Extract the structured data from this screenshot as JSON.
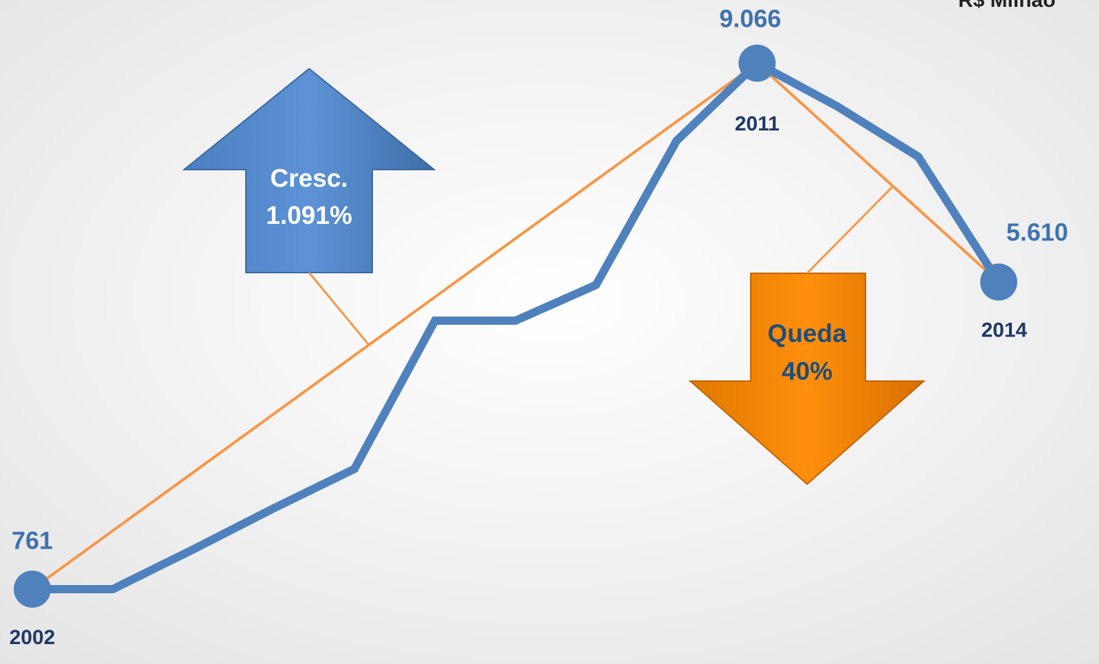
{
  "chart_data": {
    "type": "line",
    "unit": "R$ Milhão",
    "categories": [
      "2002",
      null,
      null,
      null,
      null,
      null,
      null,
      null,
      null,
      "2011",
      null,
      null,
      "2014"
    ],
    "series": [
      {
        "color": "#4f81bd",
        "values": [
          761,
          761,
          1390,
          2040,
          2660,
          5000,
          5000,
          5565,
          7840,
          9066,
          8380,
          7590,
          5610
        ],
        "value_labels": [
          "761",
          null,
          null,
          null,
          null,
          null,
          null,
          null,
          null,
          "9.066",
          null,
          null,
          "5.610"
        ]
      }
    ],
    "trend_color": "#f79646",
    "annotations": [
      {
        "lines": [
          "Cresc.",
          "1.091%"
        ],
        "color": "#558ed5",
        "text_color": "#ffffff"
      },
      {
        "lines": [
          "Queda",
          "40%"
        ],
        "color": "#ff8c0a",
        "text_color": "#1f4e79"
      }
    ]
  }
}
